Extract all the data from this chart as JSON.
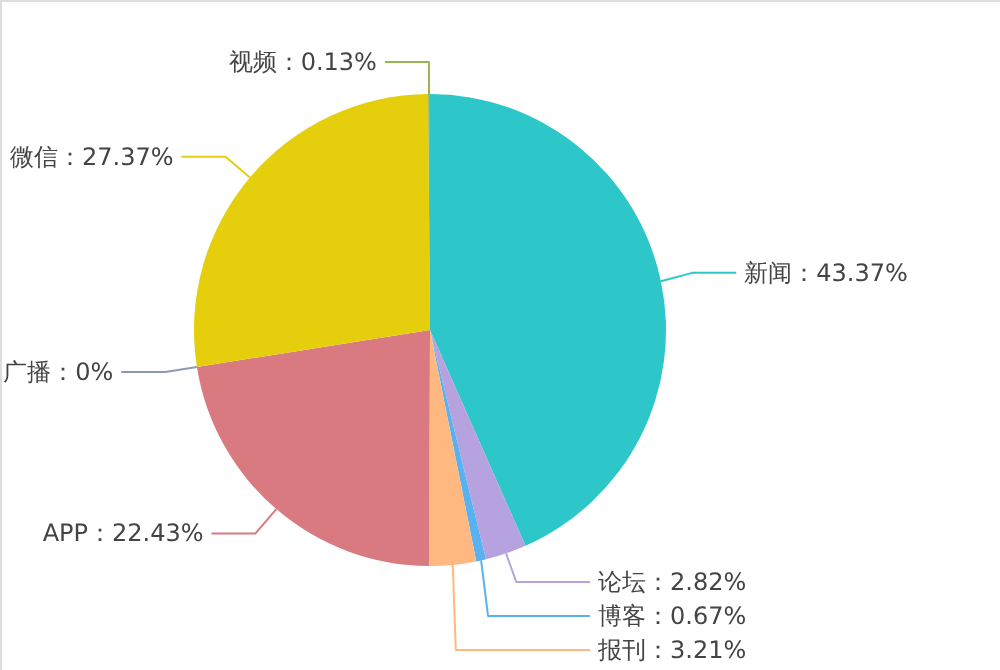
{
  "chart_data": {
    "type": "pie",
    "categories": [
      "新闻",
      "论坛",
      "博客",
      "报刊",
      "APP",
      "广播",
      "微信",
      "视频"
    ],
    "values": [
      43.37,
      2.82,
      0.67,
      3.21,
      22.43,
      0,
      27.37,
      0.13
    ],
    "colors": [
      "#2ec7c9",
      "#b6a2de",
      "#5ab1ef",
      "#ffb980",
      "#d87a80",
      "#8d98b3",
      "#e5cf0d",
      "#97b552"
    ],
    "value_labels": [
      "43.37%",
      "2.82%",
      "0.67%",
      "3.21%",
      "22.43%",
      "0%",
      "27.37%",
      "0.13%"
    ]
  }
}
